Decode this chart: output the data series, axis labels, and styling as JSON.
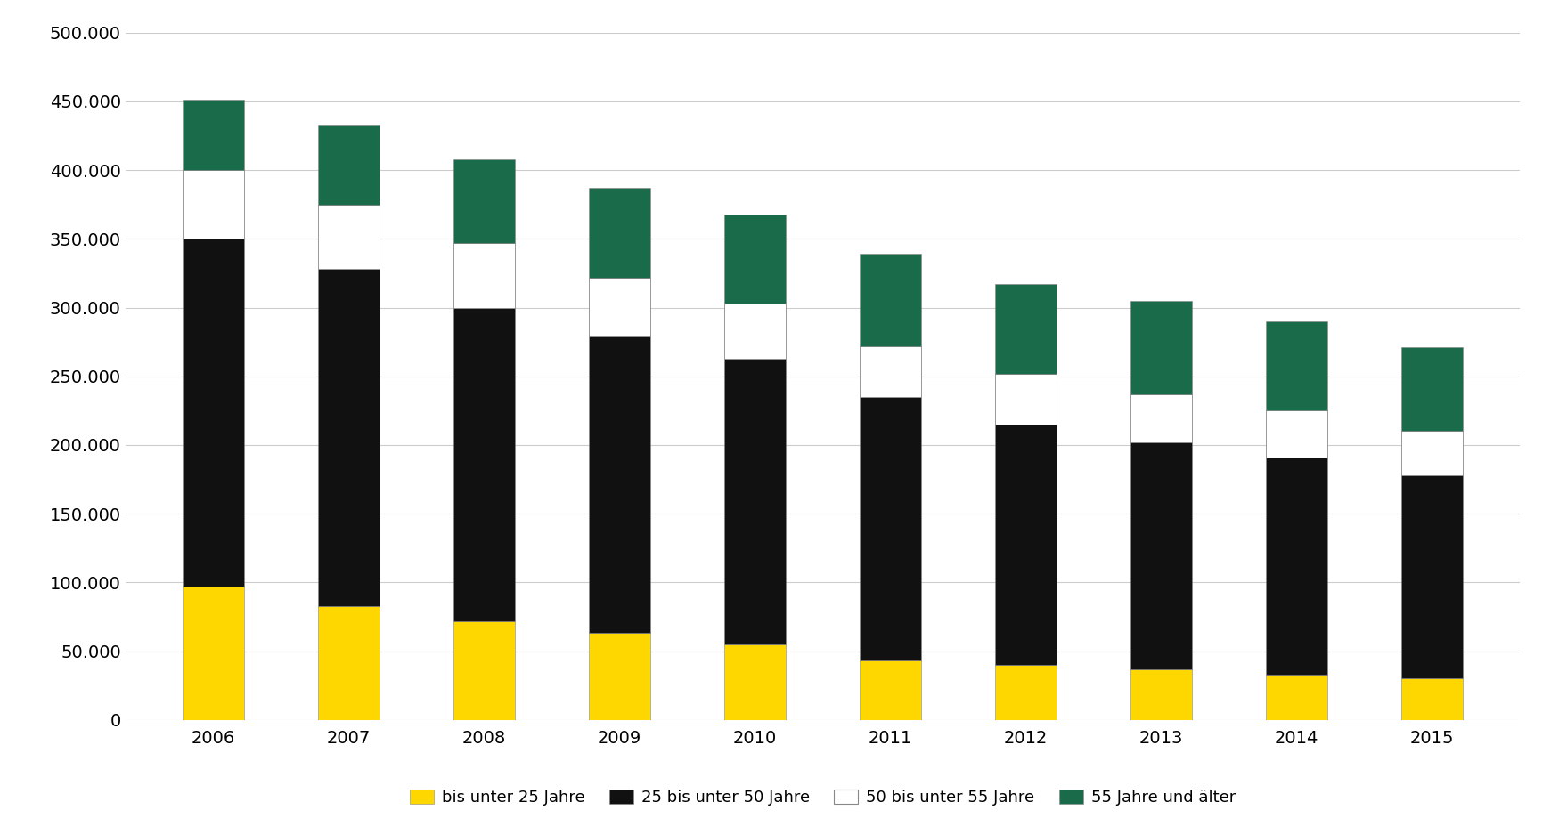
{
  "years": [
    "2006",
    "2007",
    "2008",
    "2009",
    "2010",
    "2011",
    "2012",
    "2013",
    "2014",
    "2015"
  ],
  "unter25": [
    97000,
    83000,
    72000,
    63000,
    55000,
    43000,
    40000,
    37000,
    33000,
    30000
  ],
  "25bis50": [
    253000,
    245000,
    228000,
    216000,
    208000,
    192000,
    175000,
    165000,
    158000,
    148000
  ],
  "50bis55": [
    50000,
    47000,
    47000,
    43000,
    40000,
    37000,
    37000,
    35000,
    34000,
    32000
  ],
  "55plus": [
    51000,
    58000,
    61000,
    65000,
    65000,
    67000,
    65000,
    68000,
    65000,
    61000
  ],
  "colors": {
    "unter25": "#FFD700",
    "25bis50": "#111111",
    "50bis55": "#FFFFFF",
    "55plus": "#1A6B4A"
  },
  "legend_labels": [
    "bis unter 25 Jahre",
    "25 bis unter 50 Jahre",
    "50 bis unter 55 Jahre",
    "55 Jahre und älter"
  ],
  "ylim": [
    0,
    500000
  ],
  "yticks": [
    0,
    50000,
    100000,
    150000,
    200000,
    250000,
    300000,
    350000,
    400000,
    450000,
    500000
  ],
  "bar_width": 0.45,
  "background_color": "#FFFFFF",
  "grid_color": "#CCCCCC",
  "bar_edgecolor": "#888888",
  "bar_edgewidth": 0.4
}
